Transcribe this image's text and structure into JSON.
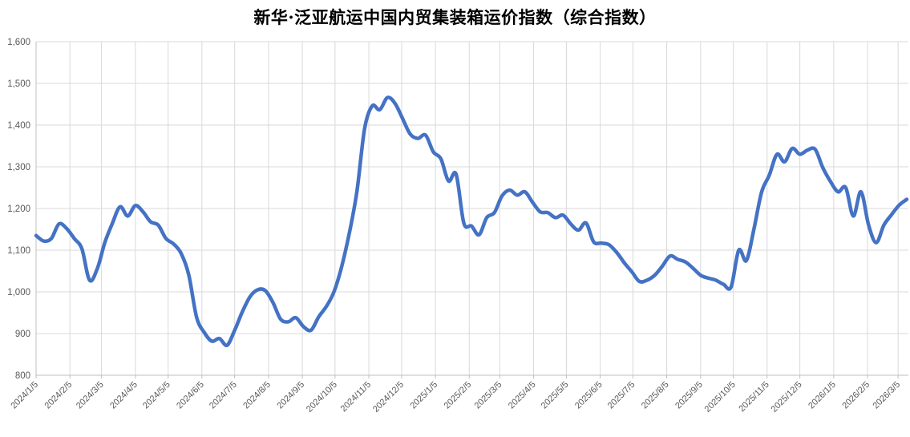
{
  "chart_data": {
    "type": "line",
    "title": "新华·泛亚航运中国内贸集装箱运价指数（综合指数）",
    "legend": false,
    "grid": true,
    "background": "#ffffff",
    "line_color": "#4472C4",
    "line_width": 4.5,
    "smoothed": true,
    "gridline_color": "#D9D9D9",
    "axis_color": "#BFBFBF",
    "tick_label_color": "#595959",
    "y_min": 800,
    "y_max": 1600,
    "y_tick_labels": [
      "800",
      "900",
      "1,000",
      "1,100",
      "1,200",
      "1,300",
      "1,400",
      "1,500",
      "1,600"
    ],
    "y_ticks": [
      800,
      900,
      1000,
      1100,
      1200,
      1300,
      1400,
      1500,
      1600
    ],
    "x_unit": "weekly",
    "x_first_point": "2024/1/5",
    "x_tick_labels": [
      {
        "label": "2024/1/5",
        "week": 0
      },
      {
        "label": "2024/2/5",
        "week": 4.43
      },
      {
        "label": "2024/3/5",
        "week": 8.57
      },
      {
        "label": "2024/4/5",
        "week": 13.0
      },
      {
        "label": "2024/5/5",
        "week": 17.29
      },
      {
        "label": "2024/6/5",
        "week": 21.71
      },
      {
        "label": "2024/7/5",
        "week": 26.0
      },
      {
        "label": "2024/8/5",
        "week": 30.43
      },
      {
        "label": "2024/9/5",
        "week": 34.86
      },
      {
        "label": "2024/10/5",
        "week": 39.14
      },
      {
        "label": "2024/11/5",
        "week": 43.57
      },
      {
        "label": "2024/12/5",
        "week": 47.86
      },
      {
        "label": "2025/1/5",
        "week": 52.29
      },
      {
        "label": "2025/2/5",
        "week": 56.71
      },
      {
        "label": "2025/3/5",
        "week": 60.71
      },
      {
        "label": "2025/4/5",
        "week": 65.14
      },
      {
        "label": "2025/5/5",
        "week": 69.43
      },
      {
        "label": "2025/6/5",
        "week": 73.86
      },
      {
        "label": "2025/7/5",
        "week": 78.14
      },
      {
        "label": "2025/8/5",
        "week": 82.57
      },
      {
        "label": "2025/9/5",
        "week": 87.0
      },
      {
        "label": "2025/10/5",
        "week": 91.29
      },
      {
        "label": "2025/11/5",
        "week": 95.71
      },
      {
        "label": "2025/12/5",
        "week": 100.0
      },
      {
        "label": "2026/1/5",
        "week": 104.43
      },
      {
        "label": "2026/2/5",
        "week": 108.86
      },
      {
        "label": "2026/3/5",
        "week": 112.86
      }
    ],
    "series": [
      {
        "name": "综合指数",
        "values": [
          1135,
          1122,
          1128,
          1163,
          1152,
          1128,
          1103,
          1028,
          1055,
          1118,
          1165,
          1204,
          1182,
          1207,
          1192,
          1168,
          1160,
          1128,
          1115,
          1092,
          1040,
          940,
          903,
          882,
          888,
          872,
          908,
          952,
          988,
          1005,
          1003,
          975,
          935,
          928,
          938,
          917,
          908,
          940,
          965,
          1000,
          1060,
          1140,
          1240,
          1390,
          1446,
          1437,
          1466,
          1452,
          1415,
          1378,
          1368,
          1376,
          1336,
          1319,
          1266,
          1282,
          1165,
          1158,
          1137,
          1178,
          1190,
          1230,
          1244,
          1232,
          1240,
          1215,
          1192,
          1190,
          1178,
          1184,
          1163,
          1148,
          1165,
          1120,
          1117,
          1113,
          1095,
          1070,
          1048,
          1025,
          1028,
          1040,
          1062,
          1086,
          1078,
          1072,
          1057,
          1040,
          1033,
          1028,
          1018,
          1012,
          1100,
          1075,
          1152,
          1240,
          1280,
          1330,
          1312,
          1344,
          1330,
          1340,
          1342,
          1298,
          1265,
          1240,
          1250,
          1182,
          1240,
          1160,
          1118,
          1160,
          1185,
          1208,
          1222
        ]
      }
    ]
  }
}
